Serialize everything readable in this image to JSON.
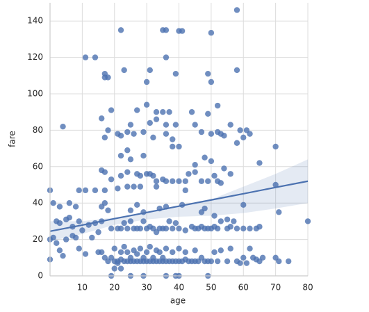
{
  "chart_data": {
    "type": "scatter",
    "x_label": "age",
    "y_label": "fare",
    "color": "#4c72b0",
    "xlim": [
      0,
      80
    ],
    "ylim": [
      0,
      150
    ],
    "xticks": [
      10,
      20,
      30,
      40,
      50,
      60,
      70,
      80
    ],
    "yticks": [
      0,
      20,
      40,
      60,
      80,
      100,
      120,
      140
    ],
    "grid": true,
    "x": [
      58,
      22,
      36,
      35,
      41,
      40,
      50,
      11,
      14,
      36,
      17,
      18,
      17,
      23,
      31,
      39,
      49,
      58,
      30,
      50,
      27,
      19,
      30,
      52,
      33,
      35,
      37,
      44,
      49,
      16,
      25,
      24,
      4,
      17,
      18,
      21,
      22,
      26,
      29,
      31,
      32,
      33,
      36,
      39,
      38,
      40,
      38,
      36,
      45,
      47,
      50,
      52,
      54,
      56,
      53,
      59,
      61,
      62,
      60,
      58,
      70,
      22,
      24,
      29,
      25,
      48,
      45,
      50,
      54,
      65,
      16,
      17,
      19,
      22,
      24,
      27,
      28,
      30,
      31,
      32,
      33,
      35,
      36,
      38,
      40,
      42,
      43,
      45,
      47,
      49,
      51,
      52,
      53,
      56,
      70,
      24,
      26,
      28,
      21,
      33,
      42,
      0,
      9,
      11,
      14,
      17,
      6,
      3,
      1,
      8,
      16,
      17,
      18,
      25,
      27,
      29,
      34,
      36,
      41,
      47,
      48,
      51,
      55,
      57,
      60,
      71,
      80,
      2,
      3,
      5,
      6,
      7,
      9,
      10,
      12,
      14,
      15,
      16,
      19,
      21,
      22,
      23,
      24,
      25,
      26,
      27,
      28,
      29,
      30,
      31,
      32,
      33,
      34,
      35,
      36,
      37,
      38,
      39,
      40,
      42,
      44,
      45,
      46,
      47,
      48,
      49,
      50,
      51,
      52,
      53,
      55,
      56,
      58,
      60,
      62,
      64,
      65,
      0,
      1,
      2,
      3,
      4,
      5,
      7,
      8,
      9,
      11,
      13,
      15,
      16,
      17,
      18,
      19,
      20,
      20,
      21,
      22,
      22,
      23,
      23,
      24,
      24,
      25,
      25,
      26,
      26,
      27,
      27,
      28,
      28,
      29,
      29,
      30,
      30,
      31,
      31,
      32,
      32,
      33,
      33,
      34,
      34,
      35,
      35,
      36,
      36,
      37,
      38,
      38,
      39,
      40,
      40,
      41,
      42,
      42,
      43,
      44,
      45,
      45,
      46,
      47,
      48,
      49,
      50,
      51,
      52,
      53,
      55,
      56,
      58,
      59,
      60,
      61,
      62,
      63,
      64,
      65,
      66,
      70,
      71,
      74,
      0,
      20,
      21,
      22,
      19,
      25,
      29,
      36,
      39,
      40,
      49
    ],
    "values": [
      146,
      135,
      135,
      135,
      134.5,
      134.5,
      133.5,
      120,
      120,
      120,
      111,
      109,
      109,
      113,
      113,
      111,
      111,
      113,
      106.5,
      106.5,
      91,
      91,
      94,
      93.5,
      90,
      90,
      90,
      90,
      89,
      86.5,
      83,
      79,
      82,
      76,
      80,
      78,
      77,
      78,
      79,
      84,
      76,
      86,
      83,
      83,
      71,
      71,
      75,
      78,
      83,
      79,
      78,
      79,
      77,
      83,
      78,
      80,
      80,
      78,
      76,
      73,
      71,
      66,
      69,
      66,
      64,
      65,
      61,
      63,
      59,
      62,
      58,
      57,
      53,
      55,
      57,
      56,
      55,
      56,
      56,
      55,
      52,
      53,
      52,
      52,
      52,
      52,
      56,
      57,
      52,
      52,
      55,
      52,
      51,
      56,
      50,
      49,
      49,
      49,
      48,
      49,
      47,
      47,
      47,
      47,
      47,
      47,
      40,
      38,
      40,
      38,
      38,
      40,
      36,
      36,
      39,
      35,
      37,
      38,
      39,
      35,
      37,
      33,
      31,
      30,
      39,
      35,
      30,
      30,
      29,
      31,
      32,
      27,
      30,
      25,
      28,
      29,
      24,
      30,
      26,
      26,
      26,
      29,
      26,
      30,
      26,
      26,
      26,
      30,
      26,
      27,
      26,
      24,
      26,
      26,
      26,
      30,
      26,
      29,
      26,
      25,
      27,
      26,
      26,
      27,
      26,
      26,
      26,
      27,
      26,
      30,
      26,
      27,
      26,
      26,
      26,
      26,
      27,
      20,
      21,
      18,
      14,
      11,
      20,
      22,
      21,
      15,
      12,
      21,
      13,
      13,
      10,
      8,
      10,
      8,
      15,
      8,
      9,
      13,
      8,
      16,
      8,
      13,
      8,
      10,
      8,
      14,
      8,
      12,
      8,
      15,
      8,
      10,
      8,
      13,
      8,
      16,
      8,
      10,
      8,
      14,
      8,
      13,
      8,
      10,
      8,
      15,
      8,
      8,
      13,
      8,
      8,
      15,
      8,
      9,
      13,
      8,
      8,
      8,
      14,
      8,
      10,
      8,
      8,
      8,
      13,
      8,
      14,
      8,
      15,
      8,
      7,
      10,
      7,
      15,
      10,
      9,
      8,
      10,
      10,
      8,
      8,
      9,
      4,
      7,
      4,
      0,
      0,
      0,
      0,
      0,
      0,
      0
    ],
    "regression": {
      "x": [
        0,
        10,
        20,
        30,
        40,
        50,
        60,
        70,
        80
      ],
      "values": [
        24.5,
        27.9,
        31.4,
        34.8,
        38.3,
        41.7,
        45.1,
        48.6,
        52.0
      ],
      "ci_lower": [
        19,
        23,
        28,
        31,
        32.5,
        33,
        34.5,
        37,
        40
      ],
      "ci_upper": [
        30,
        30,
        32,
        35,
        38,
        42,
        49,
        56,
        64
      ]
    }
  }
}
